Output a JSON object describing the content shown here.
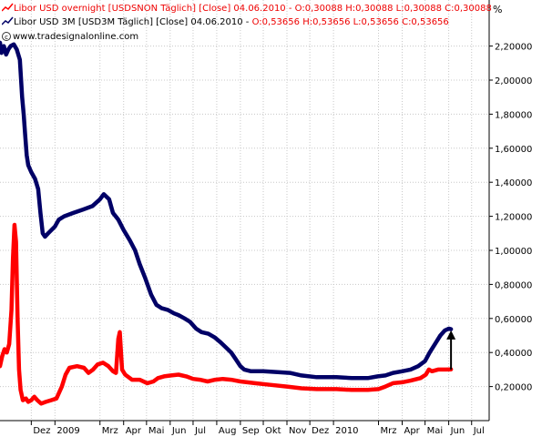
{
  "legend": {
    "overnight_label": "Libor USD overnight [USDSNON  Täglich] [Close] 04.06.2010 - O:0,30088 H:0,30088 L:0,30088 C:0,30088",
    "threem_label_main": "Libor USD 3M [USD3M  Täglich] [Close] 04.06.2010 - ",
    "threem_label_values": "O:0,53656 H:0,53656 L:0,53656 C:0,53656"
  },
  "source": "www.tradesignalonline.com",
  "unit": "%",
  "colors": {
    "overnight": "#ff0000",
    "threem": "#000066",
    "grid": "#c8c8c8",
    "axis": "#000000",
    "arrow": "#000000"
  },
  "chart_data": {
    "type": "line",
    "ylim": [
      0.0,
      2.36
    ],
    "y_ticks": [
      0.2,
      0.4,
      0.6,
      0.8,
      1.0,
      1.2,
      1.4,
      1.6,
      1.8,
      2.0,
      2.2
    ],
    "y_tick_labels": [
      "0,20000",
      "0,40000",
      "0,60000",
      "0,80000",
      "1,00000",
      "1,20000",
      "1,40000",
      "1,60000",
      "1,80000",
      "2,00000",
      "2,20000"
    ],
    "x_range": [
      "2008-10-21",
      "2010-07-24"
    ],
    "x_tick_labels": [
      {
        "label": "Dez",
        "date": "2008-12-01"
      },
      {
        "label": "2009",
        "date": "2009-01-01"
      },
      {
        "label": "Mrz",
        "date": "2009-03-01"
      },
      {
        "label": "Apr",
        "date": "2009-04-01"
      },
      {
        "label": "Mai",
        "date": "2009-05-01"
      },
      {
        "label": "Jun",
        "date": "2009-06-01"
      },
      {
        "label": "Jul",
        "date": "2009-07-01"
      },
      {
        "label": "Aug",
        "date": "2009-08-01"
      },
      {
        "label": "Sep",
        "date": "2009-09-01"
      },
      {
        "label": "Okt",
        "date": "2009-10-01"
      },
      {
        "label": "Nov",
        "date": "2009-11-01"
      },
      {
        "label": "Dez",
        "date": "2009-12-01"
      },
      {
        "label": "2010",
        "date": "2010-01-01"
      },
      {
        "label": "Mrz",
        "date": "2010-03-01"
      },
      {
        "label": "Apr",
        "date": "2010-04-01"
      },
      {
        "label": "Mai",
        "date": "2010-05-01"
      },
      {
        "label": "Jun",
        "date": "2010-06-01"
      },
      {
        "label": "Jul",
        "date": "2010-07-01"
      }
    ],
    "series": [
      {
        "name": "Libor USD 3M",
        "color": "#000066",
        "points": [
          [
            "2008-10-21",
            2.22
          ],
          [
            "2008-10-23",
            2.16
          ],
          [
            "2008-10-26",
            2.2
          ],
          [
            "2008-10-29",
            2.15
          ],
          [
            "2008-11-01",
            2.18
          ],
          [
            "2008-11-04",
            2.2
          ],
          [
            "2008-11-08",
            2.21
          ],
          [
            "2008-11-12",
            2.18
          ],
          [
            "2008-11-16",
            2.12
          ],
          [
            "2008-11-19",
            1.9
          ],
          [
            "2008-11-21",
            1.8
          ],
          [
            "2008-11-23",
            1.68
          ],
          [
            "2008-11-25",
            1.56
          ],
          [
            "2008-11-27",
            1.5
          ],
          [
            "2008-12-01",
            1.46
          ],
          [
            "2008-12-06",
            1.42
          ],
          [
            "2008-12-10",
            1.36
          ],
          [
            "2008-12-13",
            1.22
          ],
          [
            "2008-12-16",
            1.1
          ],
          [
            "2008-12-19",
            1.08
          ],
          [
            "2008-12-23",
            1.1
          ],
          [
            "2009-01-01",
            1.14
          ],
          [
            "2009-01-06",
            1.18
          ],
          [
            "2009-01-13",
            1.2
          ],
          [
            "2009-01-25",
            1.22
          ],
          [
            "2009-02-07",
            1.24
          ],
          [
            "2009-02-19",
            1.26
          ],
          [
            "2009-03-01",
            1.3
          ],
          [
            "2009-03-06",
            1.33
          ],
          [
            "2009-03-13",
            1.3
          ],
          [
            "2009-03-18",
            1.22
          ],
          [
            "2009-03-25",
            1.18
          ],
          [
            "2009-04-01",
            1.12
          ],
          [
            "2009-04-09",
            1.06
          ],
          [
            "2009-04-16",
            1.0
          ],
          [
            "2009-04-22",
            0.92
          ],
          [
            "2009-04-29",
            0.84
          ],
          [
            "2009-05-07",
            0.74
          ],
          [
            "2009-05-14",
            0.68
          ],
          [
            "2009-05-21",
            0.66
          ],
          [
            "2009-05-29",
            0.65
          ],
          [
            "2009-06-06",
            0.63
          ],
          [
            "2009-06-12",
            0.62
          ],
          [
            "2009-06-20",
            0.6
          ],
          [
            "2009-06-27",
            0.58
          ],
          [
            "2009-07-05",
            0.54
          ],
          [
            "2009-07-12",
            0.52
          ],
          [
            "2009-07-21",
            0.51
          ],
          [
            "2009-07-29",
            0.49
          ],
          [
            "2009-08-06",
            0.46
          ],
          [
            "2009-08-13",
            0.43
          ],
          [
            "2009-08-20",
            0.4
          ],
          [
            "2009-08-26",
            0.36
          ],
          [
            "2009-09-01",
            0.32
          ],
          [
            "2009-09-06",
            0.3
          ],
          [
            "2009-09-15",
            0.29
          ],
          [
            "2009-10-01",
            0.29
          ],
          [
            "2009-10-20",
            0.285
          ],
          [
            "2009-11-05",
            0.28
          ],
          [
            "2009-11-20",
            0.265
          ],
          [
            "2009-12-10",
            0.255
          ],
          [
            "2010-01-05",
            0.255
          ],
          [
            "2010-01-25",
            0.25
          ],
          [
            "2010-02-15",
            0.25
          ],
          [
            "2010-02-28",
            0.26
          ],
          [
            "2010-03-10",
            0.265
          ],
          [
            "2010-03-20",
            0.28
          ],
          [
            "2010-04-01",
            0.29
          ],
          [
            "2010-04-12",
            0.3
          ],
          [
            "2010-04-22",
            0.32
          ],
          [
            "2010-05-01",
            0.35
          ],
          [
            "2010-05-07",
            0.4
          ],
          [
            "2010-05-14",
            0.45
          ],
          [
            "2010-05-21",
            0.5
          ],
          [
            "2010-05-27",
            0.53
          ],
          [
            "2010-06-01",
            0.54
          ],
          [
            "2010-06-04",
            0.537
          ]
        ]
      },
      {
        "name": "Libor USD overnight",
        "color": "#ff0000",
        "points": [
          [
            "2008-10-21",
            0.32
          ],
          [
            "2008-10-24",
            0.38
          ],
          [
            "2008-10-27",
            0.42
          ],
          [
            "2008-10-30",
            0.4
          ],
          [
            "2008-11-02",
            0.45
          ],
          [
            "2008-11-05",
            0.65
          ],
          [
            "2008-11-07",
            0.95
          ],
          [
            "2008-11-09",
            1.15
          ],
          [
            "2008-11-11",
            1.05
          ],
          [
            "2008-11-13",
            0.6
          ],
          [
            "2008-11-15",
            0.3
          ],
          [
            "2008-11-17",
            0.18
          ],
          [
            "2008-11-20",
            0.12
          ],
          [
            "2008-11-24",
            0.13
          ],
          [
            "2008-11-27",
            0.11
          ],
          [
            "2008-12-01",
            0.12
          ],
          [
            "2008-12-05",
            0.14
          ],
          [
            "2008-12-09",
            0.12
          ],
          [
            "2008-12-14",
            0.1
          ],
          [
            "2008-12-20",
            0.11
          ],
          [
            "2008-12-27",
            0.12
          ],
          [
            "2009-01-03",
            0.13
          ],
          [
            "2009-01-10",
            0.2
          ],
          [
            "2009-01-15",
            0.27
          ],
          [
            "2009-01-20",
            0.31
          ],
          [
            "2009-01-30",
            0.32
          ],
          [
            "2009-02-08",
            0.31
          ],
          [
            "2009-02-14",
            0.28
          ],
          [
            "2009-02-20",
            0.3
          ],
          [
            "2009-02-26",
            0.33
          ],
          [
            "2009-03-05",
            0.34
          ],
          [
            "2009-03-12",
            0.32
          ],
          [
            "2009-03-18",
            0.29
          ],
          [
            "2009-03-22",
            0.28
          ],
          [
            "2009-03-25",
            0.48
          ],
          [
            "2009-03-27",
            0.52
          ],
          [
            "2009-03-30",
            0.3
          ],
          [
            "2009-04-03",
            0.27
          ],
          [
            "2009-04-12",
            0.24
          ],
          [
            "2009-04-22",
            0.24
          ],
          [
            "2009-05-02",
            0.22
          ],
          [
            "2009-05-10",
            0.23
          ],
          [
            "2009-05-16",
            0.25
          ],
          [
            "2009-05-24",
            0.26
          ],
          [
            "2009-06-02",
            0.265
          ],
          [
            "2009-06-12",
            0.27
          ],
          [
            "2009-06-22",
            0.26
          ],
          [
            "2009-07-01",
            0.245
          ],
          [
            "2009-07-10",
            0.24
          ],
          [
            "2009-07-20",
            0.23
          ],
          [
            "2009-07-30",
            0.24
          ],
          [
            "2009-08-09",
            0.245
          ],
          [
            "2009-08-20",
            0.24
          ],
          [
            "2009-09-01",
            0.23
          ],
          [
            "2009-09-20",
            0.22
          ],
          [
            "2009-10-10",
            0.21
          ],
          [
            "2009-11-01",
            0.2
          ],
          [
            "2009-11-20",
            0.19
          ],
          [
            "2009-12-10",
            0.185
          ],
          [
            "2010-01-05",
            0.185
          ],
          [
            "2010-01-25",
            0.18
          ],
          [
            "2010-02-15",
            0.18
          ],
          [
            "2010-03-01",
            0.185
          ],
          [
            "2010-03-10",
            0.2
          ],
          [
            "2010-03-20",
            0.22
          ],
          [
            "2010-04-01",
            0.225
          ],
          [
            "2010-04-12",
            0.235
          ],
          [
            "2010-04-25",
            0.25
          ],
          [
            "2010-05-02",
            0.27
          ],
          [
            "2010-05-06",
            0.3
          ],
          [
            "2010-05-10",
            0.29
          ],
          [
            "2010-05-18",
            0.3
          ],
          [
            "2010-05-28",
            0.3
          ],
          [
            "2010-06-04",
            0.301
          ]
        ]
      }
    ],
    "annotations": [
      {
        "type": "arrow",
        "date": "2010-06-04",
        "from": 0.3,
        "to": 0.53,
        "meaning": "points up from the overnight line toward the 3M line"
      }
    ]
  }
}
